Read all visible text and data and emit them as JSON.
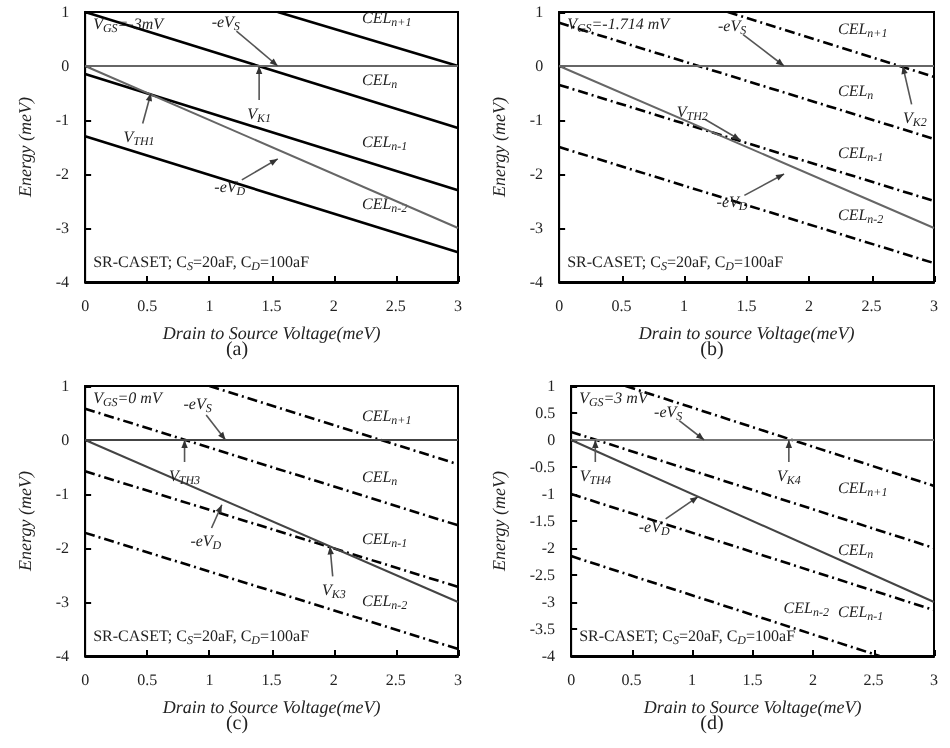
{
  "chart_data": [
    {
      "type": "line",
      "title": "(a)",
      "xlabel": "Drain to Source Voltage(meV)",
      "ylabel": "Energy (meV)",
      "xlim": [
        0,
        3
      ],
      "xticks": [
        0,
        0.5,
        1,
        1.5,
        2,
        2.5,
        3
      ],
      "ylim": [
        -4,
        1
      ],
      "yticks": [
        -4,
        -3,
        -2,
        -1,
        0,
        1
      ],
      "line_style": "solid",
      "marker": "none",
      "series": [
        {
          "name": "CEL$_{n+1}$",
          "color": "#000000",
          "x": [
            1.55,
            3
          ],
          "values": [
            1,
            0
          ]
        },
        {
          "name": "CEL$_{n}$",
          "color": "#000000",
          "x": [
            0,
            3
          ],
          "values": [
            1,
            -1.15
          ]
        },
        {
          "name": "CEL$_{n-1}$",
          "color": "#000000",
          "x": [
            0,
            3
          ],
          "values": [
            -0.15,
            -2.3
          ]
        },
        {
          "name": "CEL$_{n-2}$",
          "color": "#000000",
          "x": [
            0,
            3
          ],
          "values": [
            -1.3,
            -3.45
          ]
        },
        {
          "color": "#666666",
          "line_style": "solid",
          "x": [
            0,
            3
          ],
          "values": [
            0,
            0
          ]
        },
        {
          "color": "#666666",
          "line_style": "solid",
          "x": [
            0,
            3
          ],
          "values": [
            0,
            -3
          ]
        }
      ],
      "annotations": [
        "V$_{GS}$=-3mV",
        "SR-CASET; C$_{S}$=20aF, C$_{D}$=100aF",
        {
          "text": "-eV$_{S}$",
          "x": 1.55,
          "y": 0
        },
        {
          "text": "V$_{K1}$",
          "x": 1.4,
          "y": 0
        },
        {
          "text": "V$_{TH1}$",
          "x": 0.53,
          "y": -0.5
        },
        {
          "text": "-eV$_{D}$",
          "x": 1.55,
          "y": -1.72
        }
      ]
    },
    {
      "type": "line",
      "title": "(b)",
      "xlabel": "Drain to source Voltage(meV)",
      "ylabel": "Energy (meV)",
      "xlim": [
        0,
        3
      ],
      "xticks": [
        0,
        0.5,
        1,
        1.5,
        2,
        2.5,
        3
      ],
      "ylim": [
        -4,
        1
      ],
      "yticks": [
        -4,
        -3,
        -2,
        -1,
        0,
        1
      ],
      "line_style": "dashed",
      "marker": "none",
      "series": [
        {
          "name": "CEL$_{n+1}$",
          "color": "#000000",
          "x": [
            1.35,
            3
          ],
          "values": [
            1,
            -0.2
          ]
        },
        {
          "name": "CEL$_{n}$",
          "color": "#000000",
          "x": [
            0,
            3
          ],
          "values": [
            0.8,
            -1.35
          ]
        },
        {
          "name": "CEL$_{n-1}$",
          "color": "#000000",
          "x": [
            0,
            3
          ],
          "values": [
            -0.35,
            -2.5
          ]
        },
        {
          "name": "CEL$_{n-2}$",
          "color": "#000000",
          "x": [
            0,
            3
          ],
          "values": [
            -1.5,
            -3.65
          ]
        },
        {
          "color": "#666666",
          "line_style": "solid",
          "x": [
            0,
            3
          ],
          "values": [
            0,
            0
          ]
        },
        {
          "color": "#666666",
          "line_style": "solid",
          "x": [
            0,
            3
          ],
          "values": [
            0,
            -3
          ]
        }
      ],
      "annotations": [
        "V$_{GS}$=-1.714 mV",
        "SR-CASET; C$_{S}$=20aF, C$_{D}$=100aF",
        {
          "text": "-eV$_{S}$",
          "x": 1.8,
          "y": 0
        },
        {
          "text": "V$_{TH2}$",
          "x": 1.45,
          "y": -1.37
        },
        {
          "text": "V$_{K2}$",
          "x": 2.75,
          "y": 0
        },
        {
          "text": "-eV$_{D}$",
          "x": 1.8,
          "y": -2
        }
      ]
    },
    {
      "type": "line",
      "title": "(c)",
      "xlabel": "Drain to Source Voltage(meV)",
      "ylabel": "Energy (meV)",
      "xlim": [
        0,
        3
      ],
      "xticks": [
        0,
        0.5,
        1,
        1.5,
        2,
        2.5,
        3
      ],
      "ylim": [
        -4,
        1
      ],
      "yticks": [
        -4,
        -3,
        -2,
        -1,
        0,
        1
      ],
      "line_style": "dashed",
      "marker": "none",
      "series": [
        {
          "name": "CEL$_{n+1}$",
          "color": "#000000",
          "x": [
            1,
            3
          ],
          "values": [
            1,
            -0.45
          ]
        },
        {
          "name": "CEL$_{n}$",
          "color": "#000000",
          "x": [
            0,
            3
          ],
          "values": [
            0.58,
            -1.58
          ]
        },
        {
          "name": "CEL$_{n-1}$",
          "color": "#000000",
          "x": [
            0,
            3
          ],
          "values": [
            -0.58,
            -2.72
          ]
        },
        {
          "name": "CEL$_{n-2}$",
          "color": "#000000",
          "x": [
            0,
            3
          ],
          "values": [
            -1.72,
            -3.87
          ]
        },
        {
          "color": "#444444",
          "line_style": "solid",
          "x": [
            0,
            3
          ],
          "values": [
            0,
            0
          ]
        },
        {
          "color": "#444444",
          "line_style": "solid",
          "x": [
            0,
            3
          ],
          "values": [
            0,
            -3
          ]
        }
      ],
      "annotations": [
        "V$_{GS}$=0 mV",
        "SR-CASET; C$_{S}$=20aF, C$_{D}$=100aF",
        {
          "text": "-eV$_{S}$",
          "x": 1.13,
          "y": 0
        },
        {
          "text": "V$_{TH3}$",
          "x": 0.8,
          "y": 0
        },
        {
          "text": "-eV$_{D}$",
          "x": 1.1,
          "y": -1.2
        },
        {
          "text": "V$_{K3}$",
          "x": 1.97,
          "y": -1.97
        }
      ]
    },
    {
      "type": "line",
      "title": "(d)",
      "xlabel": "Drain to Source Voltage(meV)",
      "ylabel": "Energy (meV)",
      "xlim": [
        0,
        3
      ],
      "xticks": [
        0,
        0.5,
        1,
        1.5,
        2,
        2.5,
        3
      ],
      "ylim": [
        -4,
        1
      ],
      "yticks": [
        -4,
        -3.5,
        -3,
        -2.5,
        -2,
        -1.5,
        -1,
        -0.5,
        0,
        0.5,
        1
      ],
      "line_style": "dashed",
      "marker": "none",
      "series": [
        {
          "name": "CEL$_{n+1}$",
          "color": "#000000",
          "x": [
            0.45,
            3
          ],
          "values": [
            1,
            -0.85
          ]
        },
        {
          "name": "CEL$_{n}$",
          "color": "#000000",
          "x": [
            0,
            3
          ],
          "values": [
            0.15,
            -2
          ]
        },
        {
          "name": "CEL$_{n-1}$",
          "color": "#000000",
          "x": [
            0,
            3
          ],
          "values": [
            -1,
            -3.15
          ]
        },
        {
          "name": "CEL$_{n-2}$",
          "color": "#000000",
          "x": [
            0,
            2.55
          ],
          "values": [
            -2.15,
            -4
          ]
        },
        {
          "color": "#777777",
          "line_style": "solid",
          "x": [
            0,
            3
          ],
          "values": [
            0,
            0
          ]
        },
        {
          "color": "#444444",
          "line_style": "solid",
          "x": [
            0,
            3
          ],
          "values": [
            0,
            -3
          ]
        }
      ],
      "annotations": [
        "V$_{GS}$=3 mV",
        "SR-CASET; C$_{S}$=20aF, C$_{D}$=100aF",
        {
          "text": "-eV$_{S}$",
          "x": 1.1,
          "y": 0
        },
        {
          "text": "V$_{TH4}$",
          "x": 0.2,
          "y": 0
        },
        {
          "text": "V$_{K4}$",
          "x": 1.8,
          "y": 0
        },
        {
          "text": "-eV$_{D}$",
          "x": 1.05,
          "y": -1.05
        }
      ]
    }
  ]
}
